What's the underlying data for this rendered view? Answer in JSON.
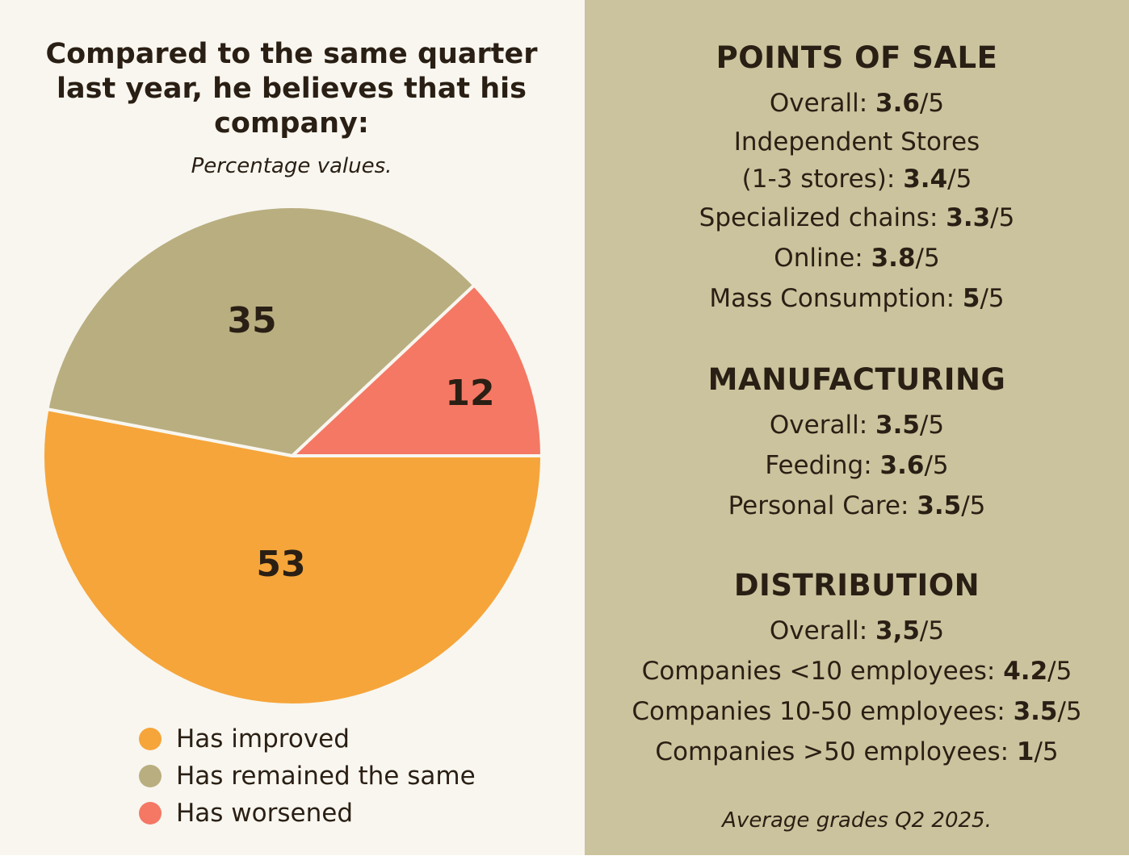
{
  "colors": {
    "improved": "#f6a53a",
    "same": "#b9ae80",
    "worsened": "#f47864",
    "left_bg": "#f8f6ef",
    "right_bg": "#cbc39d",
    "text": "#2a1f14"
  },
  "chart_data": {
    "type": "pie",
    "title": "Compared to the same quarter last year, he believes that his company:",
    "subtitle": "Percentage values.",
    "slices": [
      {
        "label": "Has improved",
        "value": 53,
        "color": "#f6a53a"
      },
      {
        "label": "Has remained the same",
        "value": 35,
        "color": "#b9ae80"
      },
      {
        "label": "Has worsened",
        "value": 12,
        "color": "#f47864"
      }
    ],
    "legend_position": "bottom"
  },
  "panel": {
    "points_of_sale": {
      "heading": "POINTS OF SALE",
      "rows": [
        {
          "label": "Overall: ",
          "value": "3.6",
          "suffix": "/5"
        },
        {
          "label": "Independent Stores",
          "value": "",
          "suffix": ""
        },
        {
          "label": "(1-3 stores): ",
          "value": "3.4",
          "suffix": "/5"
        },
        {
          "label": "Specialized chains: ",
          "value": "3.3",
          "suffix": "/5"
        },
        {
          "label": "Online: ",
          "value": "3.8",
          "suffix": "/5"
        },
        {
          "label": "Mass Consumption: ",
          "value": "5",
          "suffix": "/5"
        }
      ]
    },
    "manufacturing": {
      "heading": "MANUFACTURING",
      "rows": [
        {
          "label": "Overall: ",
          "value": "3.5",
          "suffix": "/5"
        },
        {
          "label": "Feeding: ",
          "value": "3.6",
          "suffix": "/5"
        },
        {
          "label": "Personal Care: ",
          "value": "3.5",
          "suffix": "/5"
        }
      ]
    },
    "distribution": {
      "heading": "DISTRIBUTION",
      "rows": [
        {
          "label": "Overall: ",
          "value": "3,5",
          "suffix": "/5"
        },
        {
          "label": "Companies <10 employees: ",
          "value": "4.2",
          "suffix": "/5"
        },
        {
          "label": "Companies 10-50 employees: ",
          "value": "3.5",
          "suffix": "/5"
        },
        {
          "label": "Companies >50 employees: ",
          "value": "1",
          "suffix": "/5"
        }
      ]
    },
    "footnote": "Average grades Q2 2025."
  }
}
